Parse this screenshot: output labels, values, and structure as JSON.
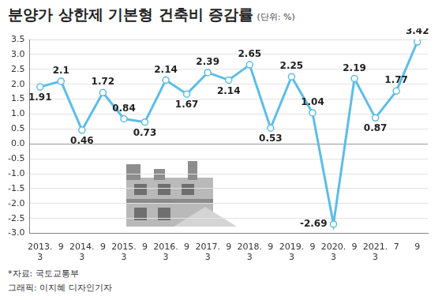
{
  "chart_data": {
    "type": "line",
    "title": "분양가 상한제 기본형 건축비 증감률",
    "subtitle": "(단위: %)",
    "categories": [
      "2013.3",
      "9",
      "2014.3",
      "9",
      "2015.3",
      "9",
      "2016.3",
      "9",
      "2017.3",
      "9",
      "2018.3",
      "9",
      "2019.3",
      "9",
      "2020.3",
      "9",
      "2021.3",
      "7",
      "9"
    ],
    "values": [
      1.91,
      2.1,
      0.46,
      1.72,
      0.84,
      0.73,
      2.14,
      1.67,
      2.39,
      2.14,
      2.65,
      0.53,
      2.25,
      1.04,
      -2.69,
      2.19,
      0.87,
      1.77,
      3.42
    ],
    "color": "#5cbde8",
    "marker": "circle",
    "ylim": [
      -3,
      3.5
    ],
    "yticks": [
      {
        "value": -3,
        "label": "-3.0"
      },
      -2.5,
      {
        "value": -2,
        "label": "-2.0"
      },
      -1.5,
      {
        "value": -1,
        "label": "-1.0"
      },
      -0.5,
      {
        "value": 0,
        "label": "0.0"
      },
      0.5,
      {
        "value": 1,
        "label": "1.0"
      },
      1.5,
      {
        "value": 2,
        "label": "2.0"
      },
      2.5,
      {
        "value": 3,
        "label": "3.0"
      },
      3.5
    ],
    "grid": true,
    "data_labels": true,
    "notes": [
      "*자료: 국토교통부",
      "그래픽: 이지혜 디자인기자"
    ]
  }
}
